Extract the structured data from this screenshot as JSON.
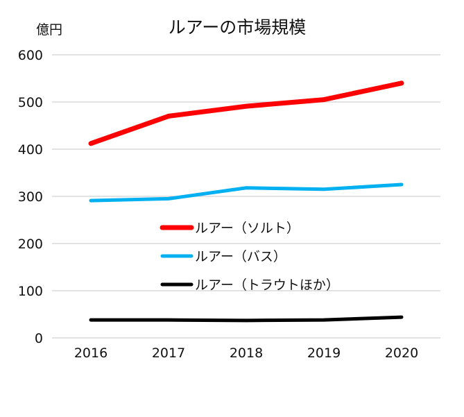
{
  "chart_data": {
    "type": "line",
    "title": "ルアーの市場規模",
    "ylabel": "億円",
    "xlabel": "",
    "categories": [
      "2016",
      "2017",
      "2018",
      "2019",
      "2020"
    ],
    "ylim": [
      0,
      600
    ],
    "yticks": [
      "0",
      "100",
      "200",
      "300",
      "400",
      "500",
      "600"
    ],
    "grid": true,
    "legend_position": "center",
    "series": [
      {
        "name": "ルアー（ソルト）",
        "color": "#ff0000",
        "values": [
          412,
          470,
          491,
          505,
          540
        ]
      },
      {
        "name": "ルアー（バス）",
        "color": "#00b0f0",
        "values": [
          291,
          295,
          318,
          315,
          325
        ]
      },
      {
        "name": "ルアー（トラウトほか）",
        "color": "#000000",
        "values": [
          38,
          38,
          37,
          38,
          44
        ]
      }
    ]
  }
}
